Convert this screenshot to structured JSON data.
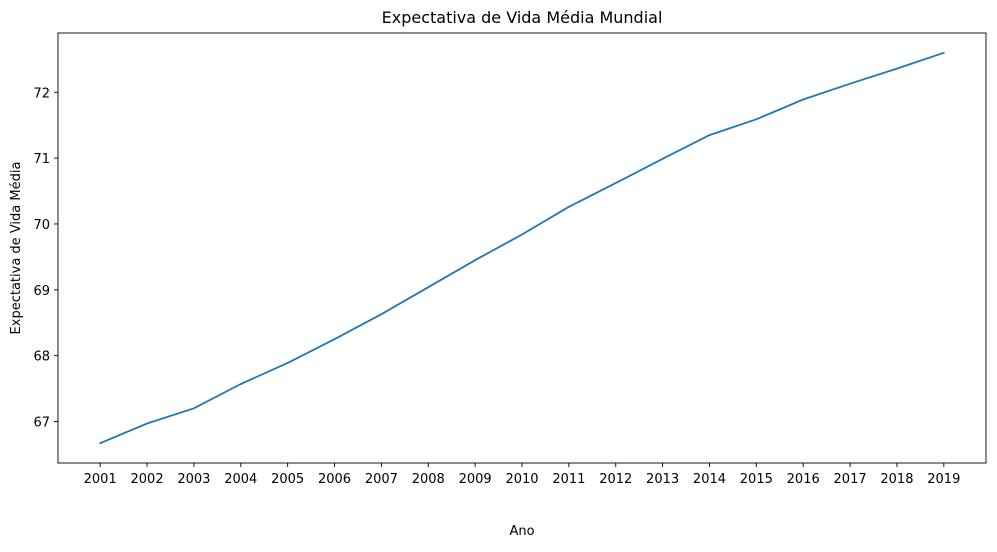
{
  "chart_data": {
    "type": "line",
    "title": "Expectativa de Vida Média Mundial",
    "xlabel": "Ano",
    "ylabel": "Expectativa de Vida Média",
    "x": [
      2001,
      2002,
      2003,
      2004,
      2005,
      2006,
      2007,
      2008,
      2009,
      2010,
      2011,
      2012,
      2013,
      2014,
      2015,
      2016,
      2017,
      2018,
      2019
    ],
    "series": [
      {
        "color": "#1f77b4",
        "values": [
          66.67,
          66.97,
          67.2,
          67.57,
          67.89,
          68.25,
          68.63,
          69.04,
          69.45,
          69.84,
          70.26,
          70.62,
          70.99,
          71.35,
          71.59,
          71.89,
          72.13,
          72.36,
          72.6
        ]
      }
    ],
    "xlim": [
      2000.1,
      2019.9
    ],
    "ylim": [
      66.37,
      72.9
    ],
    "xticks": [
      "2001",
      "2002",
      "2003",
      "2004",
      "2005",
      "2006",
      "2007",
      "2008",
      "2009",
      "2010",
      "2011",
      "2012",
      "2013",
      "2014",
      "2015",
      "2016",
      "2017",
      "2018",
      "2019"
    ],
    "yticks": [
      67,
      68,
      69,
      70,
      71,
      72
    ],
    "grid": false,
    "legend": "none"
  }
}
